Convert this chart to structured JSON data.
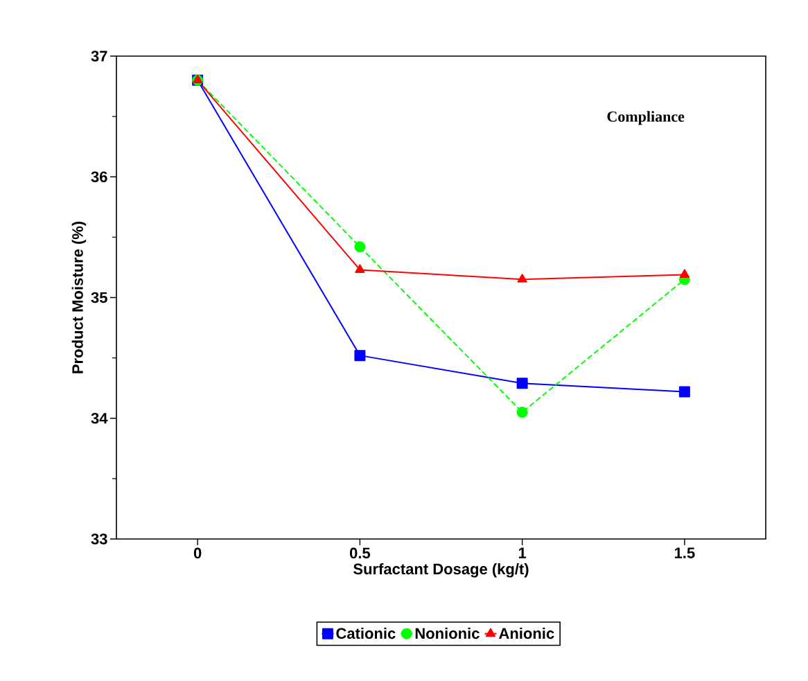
{
  "chart_data": {
    "type": "line",
    "xlabel": "Surfactant Dosage (kg/t)",
    "ylabel": "Product Moisture (%)",
    "annotations": [
      "Compliance"
    ],
    "x": [
      0,
      0.5,
      1,
      1.5
    ],
    "xlim": [
      -0.25,
      1.75
    ],
    "xticks": [
      0,
      0.5,
      1,
      1.5
    ],
    "ylim": [
      33,
      37
    ],
    "yticks": [
      33,
      34,
      35,
      36,
      37
    ],
    "grid": false,
    "legend": "bottom",
    "series": [
      {
        "name": "Cationic",
        "color": "#0000ff",
        "marker": "square",
        "line_style": "solid",
        "values": [
          36.8,
          34.52,
          34.29,
          34.22
        ]
      },
      {
        "name": "Nonionic",
        "color": "#00ff00",
        "marker": "circle",
        "line_style": "dashed",
        "values": [
          36.8,
          35.42,
          34.05,
          35.15
        ]
      },
      {
        "name": "Anionic",
        "color": "#ff0000",
        "marker": "triangle",
        "line_style": "solid",
        "values": [
          36.8,
          35.23,
          35.15,
          35.19
        ]
      }
    ]
  }
}
